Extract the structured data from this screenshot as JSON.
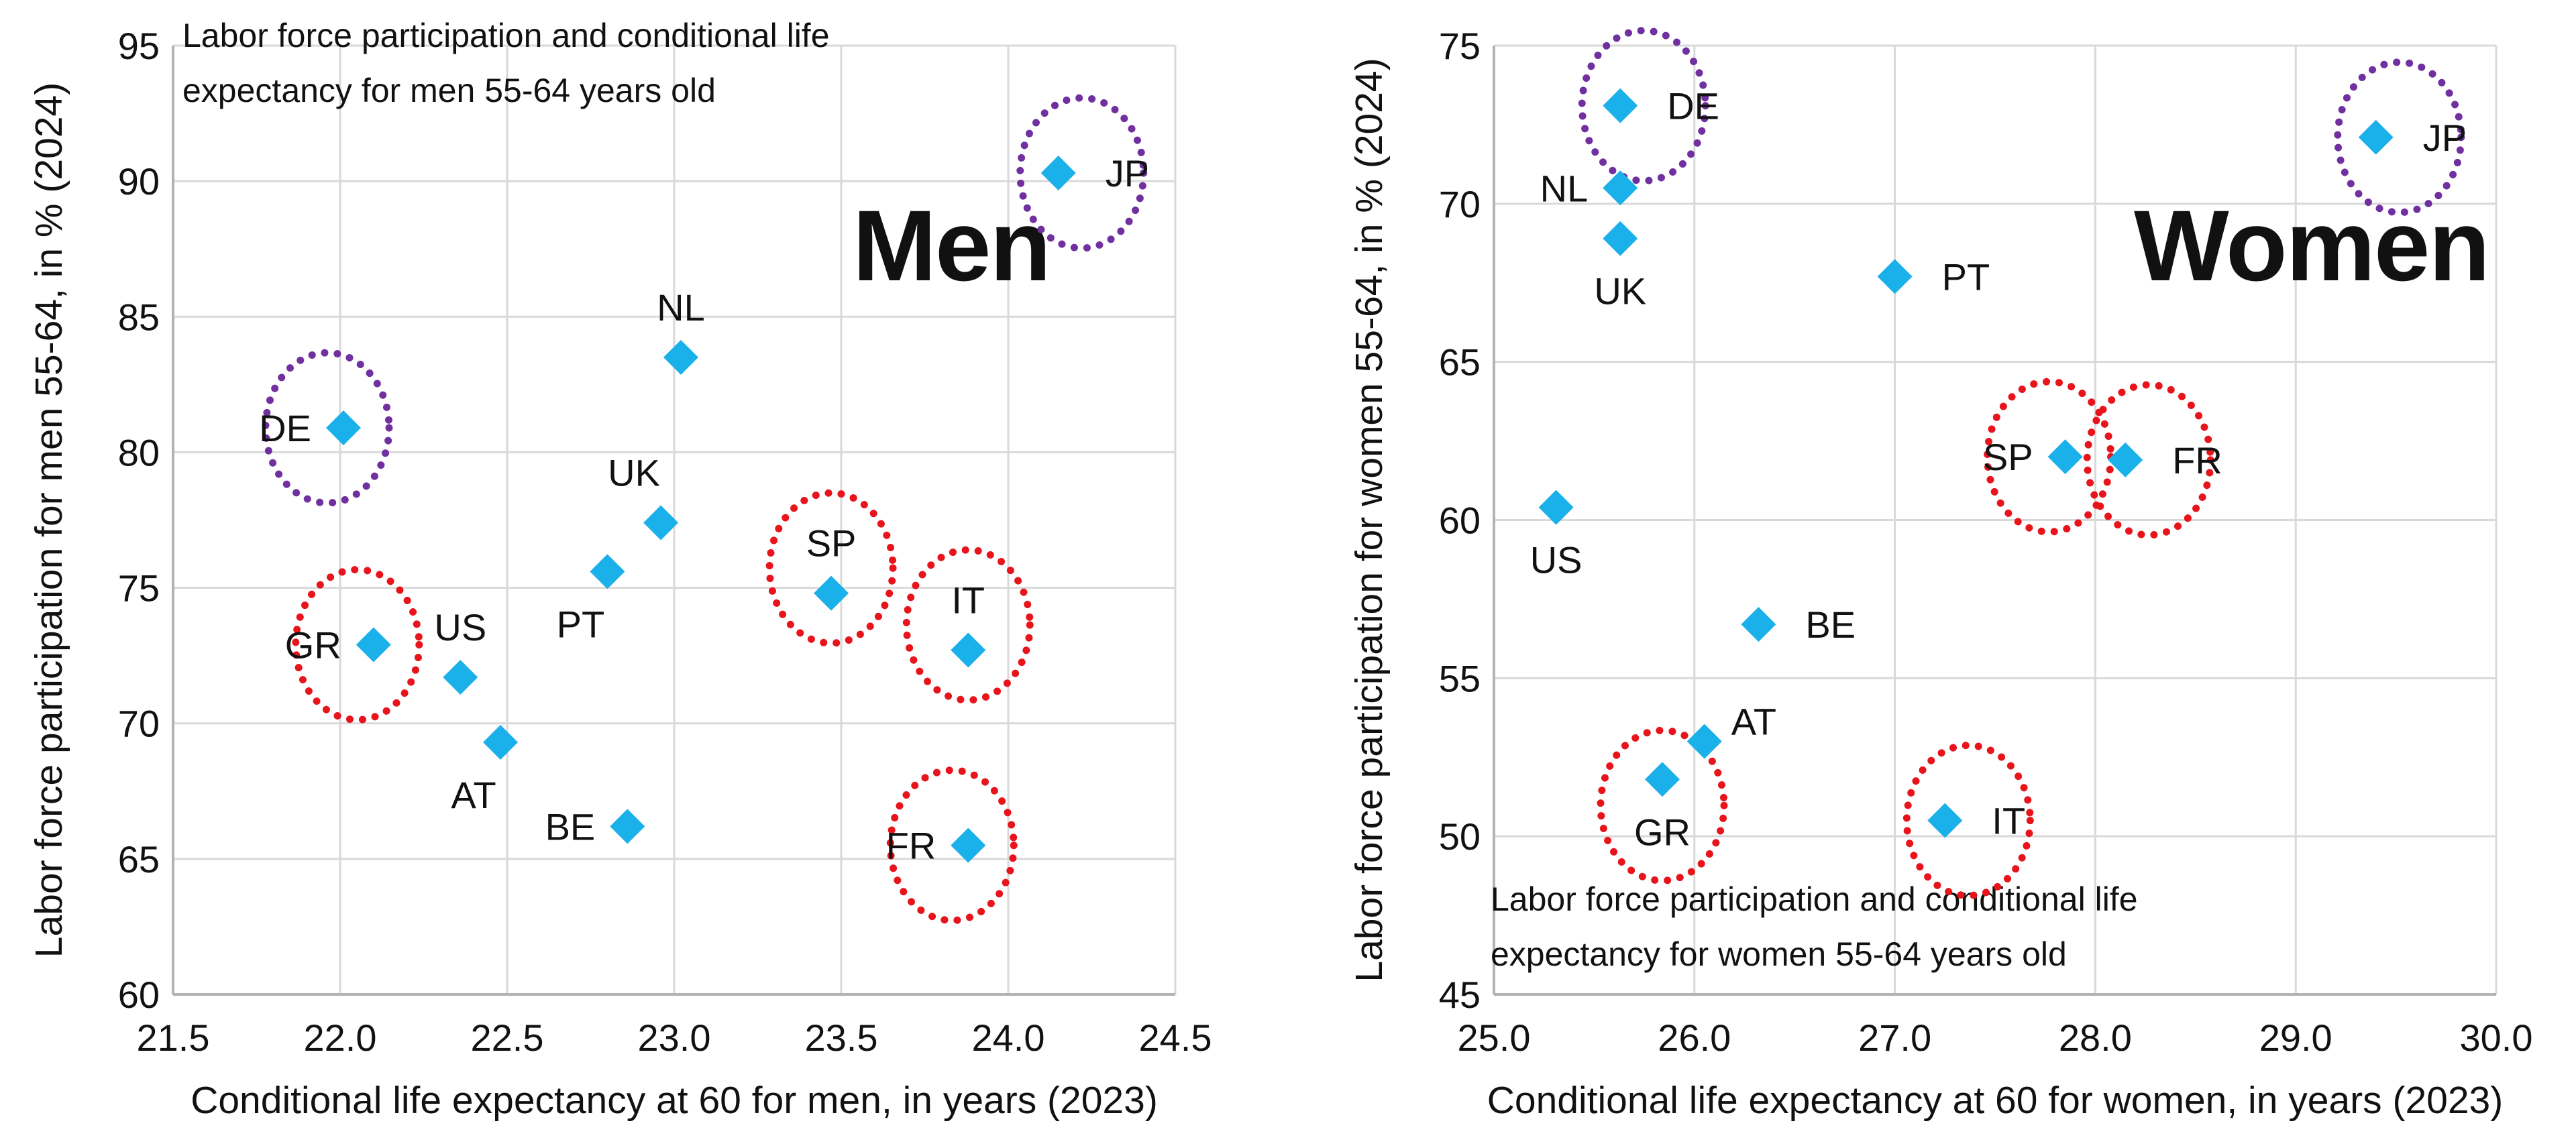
{
  "chart_data": [
    {
      "type": "scatter",
      "panel": "men",
      "title_lines": [
        "Labor force participation and conditional life",
        "expectancy for men 55-64 years old"
      ],
      "big_label": "Men",
      "xlabel": "Conditional life expectancy at 60 for men, in years (2023)",
      "ylabel": "Labor force participation for men 55-64, in % (2024)",
      "xlim": [
        21.5,
        24.5
      ],
      "ylim": [
        60,
        95
      ],
      "xticks": [
        "21.5",
        "22.0",
        "22.5",
        "23.0",
        "23.5",
        "24.0",
        "24.5"
      ],
      "yticks": [
        "60",
        "65",
        "70",
        "75",
        "80",
        "85",
        "90",
        "95"
      ],
      "grid": true,
      "marker_color": "#1AB0EA",
      "points": [
        {
          "label": "JP",
          "x": 24.15,
          "y": 90.3,
          "label_pos": "right",
          "circle": "purple"
        },
        {
          "label": "NL",
          "x": 23.02,
          "y": 83.5,
          "label_pos": "above",
          "circle": "none"
        },
        {
          "label": "DE",
          "x": 22.01,
          "y": 80.9,
          "label_pos": "left",
          "circle": "purple"
        },
        {
          "label": "UK",
          "x": 22.96,
          "y": 77.4,
          "label_pos": "above-left",
          "circle": "none"
        },
        {
          "label": "PT",
          "x": 22.8,
          "y": 75.6,
          "label_pos": "below-left",
          "circle": "none"
        },
        {
          "label": "SP",
          "x": 23.47,
          "y": 74.8,
          "label_pos": "above",
          "circle": "red"
        },
        {
          "label": "GR",
          "x": 22.1,
          "y": 72.9,
          "label_pos": "left",
          "circle": "red"
        },
        {
          "label": "IT",
          "x": 23.88,
          "y": 72.7,
          "label_pos": "above",
          "circle": "red"
        },
        {
          "label": "US",
          "x": 22.36,
          "y": 71.7,
          "label_pos": "above",
          "circle": "none"
        },
        {
          "label": "AT",
          "x": 22.48,
          "y": 69.3,
          "label_pos": "below-left",
          "circle": "none"
        },
        {
          "label": "BE",
          "x": 22.86,
          "y": 66.2,
          "label_pos": "left",
          "circle": "none"
        },
        {
          "label": "FR",
          "x": 23.88,
          "y": 65.5,
          "label_pos": "left",
          "circle": "red"
        }
      ]
    },
    {
      "type": "scatter",
      "panel": "women",
      "title_lines": [
        "Labor force participation and conditional life",
        "expectancy for women 55-64 years old"
      ],
      "big_label": "Women",
      "xlabel": "Conditional life expectancy at 60 for women, in years (2023)",
      "ylabel": "Labor force participation for women 55-64, in % (2024)",
      "xlim": [
        25.0,
        30.0
      ],
      "ylim": [
        45,
        75
      ],
      "xticks": [
        "25.0",
        "26.0",
        "27.0",
        "28.0",
        "29.0",
        "30.0"
      ],
      "yticks": [
        "45",
        "50",
        "55",
        "60",
        "65",
        "70",
        "75"
      ],
      "grid": true,
      "marker_color": "#1AB0EA",
      "points": [
        {
          "label": "DE",
          "x": 25.63,
          "y": 73.1,
          "label_pos": "right",
          "circle": "purple"
        },
        {
          "label": "JP",
          "x": 29.4,
          "y": 72.1,
          "label_pos": "right",
          "circle": "purple"
        },
        {
          "label": "NL",
          "x": 25.63,
          "y": 70.5,
          "label_pos": "left",
          "circle": "none"
        },
        {
          "label": "UK",
          "x": 25.63,
          "y": 68.9,
          "label_pos": "below",
          "circle": "none"
        },
        {
          "label": "PT",
          "x": 27.0,
          "y": 67.7,
          "label_pos": "right",
          "circle": "none"
        },
        {
          "label": "SP",
          "x": 27.85,
          "y": 62.0,
          "label_pos": "left",
          "circle": "red"
        },
        {
          "label": "FR",
          "x": 28.15,
          "y": 61.9,
          "label_pos": "right",
          "circle": "red"
        },
        {
          "label": "US",
          "x": 25.31,
          "y": 60.4,
          "label_pos": "below",
          "circle": "none"
        },
        {
          "label": "BE",
          "x": 26.32,
          "y": 56.7,
          "label_pos": "right",
          "circle": "none"
        },
        {
          "label": "AT",
          "x": 26.05,
          "y": 53.0,
          "label_pos": "above-right",
          "circle": "none"
        },
        {
          "label": "GR",
          "x": 25.84,
          "y": 51.8,
          "label_pos": "below",
          "circle": "red"
        },
        {
          "label": "IT",
          "x": 27.25,
          "y": 50.5,
          "label_pos": "right",
          "circle": "red"
        }
      ]
    }
  ],
  "colors": {
    "marker": "#1AB0EA",
    "circle_red": "#E8141C",
    "circle_purple": "#7030A0",
    "grid": "#D9D9D9",
    "axis": "#B3B3B3",
    "text": "#111111"
  }
}
